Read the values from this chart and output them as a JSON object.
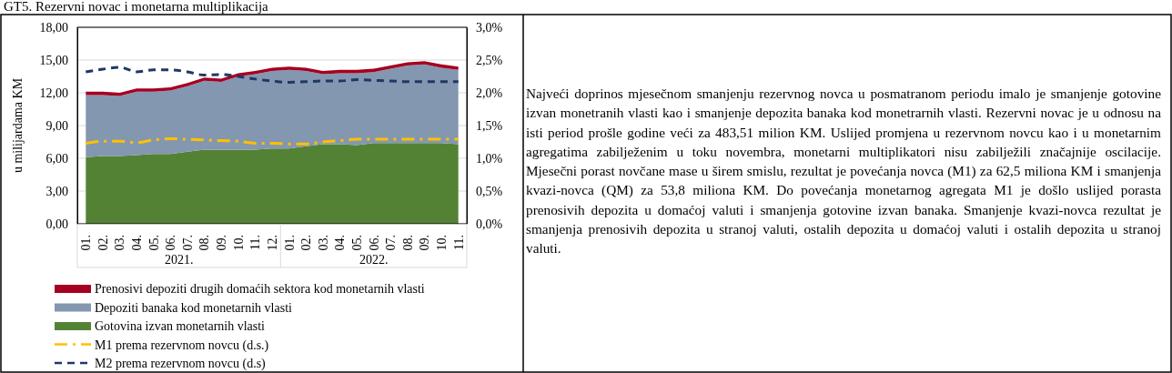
{
  "chart_data": {
    "type": "area",
    "stacked": true,
    "title": "GT5. Rezervni novac i monetarna multiplikacija",
    "ylabel": "u milijardama KM",
    "categories": [
      "01.",
      "02.",
      "03.",
      "04.",
      "05.",
      "06.",
      "07.",
      "08.",
      "09.",
      "10.",
      "11.",
      "12.",
      "01.",
      "02.",
      "03.",
      "04.",
      "05.",
      "06.",
      "07.",
      "08.",
      "09.",
      "10.",
      "11."
    ],
    "series": [
      {
        "name": "Gotovina izvan monetarnih vlasti",
        "color": "#548235",
        "values": [
          6.1,
          6.2,
          6.2,
          6.3,
          6.4,
          6.4,
          6.6,
          6.8,
          6.8,
          6.8,
          6.8,
          6.9,
          6.9,
          7.1,
          7.3,
          7.3,
          7.2,
          7.4,
          7.4,
          7.4,
          7.4,
          7.4,
          7.3
        ]
      },
      {
        "name": "Depoziti banaka kod monetarnih vlasti",
        "color": "#8497b0",
        "values": [
          5.7,
          5.6,
          5.5,
          5.8,
          5.7,
          5.8,
          6.0,
          6.3,
          6.2,
          6.7,
          6.9,
          7.1,
          7.2,
          6.9,
          6.4,
          6.5,
          6.6,
          6.5,
          6.8,
          7.1,
          7.2,
          6.9,
          6.8
        ]
      },
      {
        "name": "Prenosivi depoziti drugih domaćih sektora kod monetarnih vlasti",
        "color": "#a50021",
        "values": [
          0.3,
          0.3,
          0.3,
          0.3,
          0.3,
          0.3,
          0.3,
          0.3,
          0.3,
          0.3,
          0.3,
          0.3,
          0.3,
          0.3,
          0.3,
          0.3,
          0.3,
          0.3,
          0.3,
          0.3,
          0.3,
          0.3,
          0.3
        ]
      },
      {
        "name": "M1 prema rezervnom novcu (d.s.)",
        "type": "line",
        "axis": "y2",
        "line_style": "dashdot",
        "color": "#ffc000",
        "values": [
          1.23,
          1.26,
          1.26,
          1.24,
          1.28,
          1.3,
          1.29,
          1.28,
          1.27,
          1.26,
          1.23,
          1.23,
          1.22,
          1.22,
          1.25,
          1.27,
          1.29,
          1.29,
          1.29,
          1.29,
          1.29,
          1.29,
          1.29
        ]
      },
      {
        "name": "M2 prema rezervnom novcu (d.s)",
        "type": "line",
        "axis": "y2",
        "line_style": "dashed",
        "color": "#1f3864",
        "values": [
          2.32,
          2.36,
          2.39,
          2.32,
          2.35,
          2.35,
          2.32,
          2.27,
          2.28,
          2.25,
          2.21,
          2.18,
          2.16,
          2.17,
          2.18,
          2.18,
          2.2,
          2.19,
          2.18,
          2.17,
          2.17,
          2.17,
          2.17
        ]
      }
    ],
    "ylim": [
      0,
      18
    ],
    "yticks": [
      {
        "value": 0,
        "label": "0,00"
      },
      {
        "value": 3,
        "label": "3,00"
      },
      {
        "value": 6,
        "label": "6,00"
      },
      {
        "value": 9,
        "label": "9,00"
      },
      {
        "value": 12,
        "label": "12,00"
      },
      {
        "value": 15,
        "label": "15,00"
      },
      {
        "value": 18,
        "label": "18,00"
      }
    ],
    "y2lim": [
      0,
      3
    ],
    "y2ticks": [
      {
        "value": 0,
        "label": "0,0%"
      },
      {
        "value": 0.5,
        "label": "0,5%"
      },
      {
        "value": 1,
        "label": "1,0%"
      },
      {
        "value": 1.5,
        "label": "1,5%"
      },
      {
        "value": 2,
        "label": "2,0%"
      },
      {
        "value": 2.5,
        "label": "2,5%"
      },
      {
        "value": 3,
        "label": "3,0%"
      }
    ],
    "grid": "y",
    "legend": "bottom",
    "annotations": [
      "2021.",
      "2022.",
      "Najveći doprinos mjesečnom smanjenju rezervnog novca u posmatranom periodu imalo je smanjenje gotovine izvan monetranih vlasti kao i smanjenje depozita banaka kod monetrarnih vlasti. Rezervni novac je u odnosu na isti period prošle godine veći za 483,51 milion KM. Uslijed promjena u rezervnom novcu kao i u monetarnim agregatima zabilježenim u toku novembra, monetarni multiplikatori nisu zabilježili značajnije oscilacije. Mjesečni porast novčane mase u širem smislu, rezultat je povećanja novca (M1) za 62,5 miliona KM i smanjenja kvazi-novca (QM) za 53,8 miliona KM. Do povećanja monetarnog agregata M1 je došlo uslijed porasta prenosivih depozita u domaćoj valuti i smanjenja gotovine izvan banaka. Smanjenje kvazi-novca rezultat je smanjenja prenosivih depozita u stranoj valuti, ostalih depozita u domaćoj valuti i ostalih depozita u stranoj valuti."
    ]
  }
}
